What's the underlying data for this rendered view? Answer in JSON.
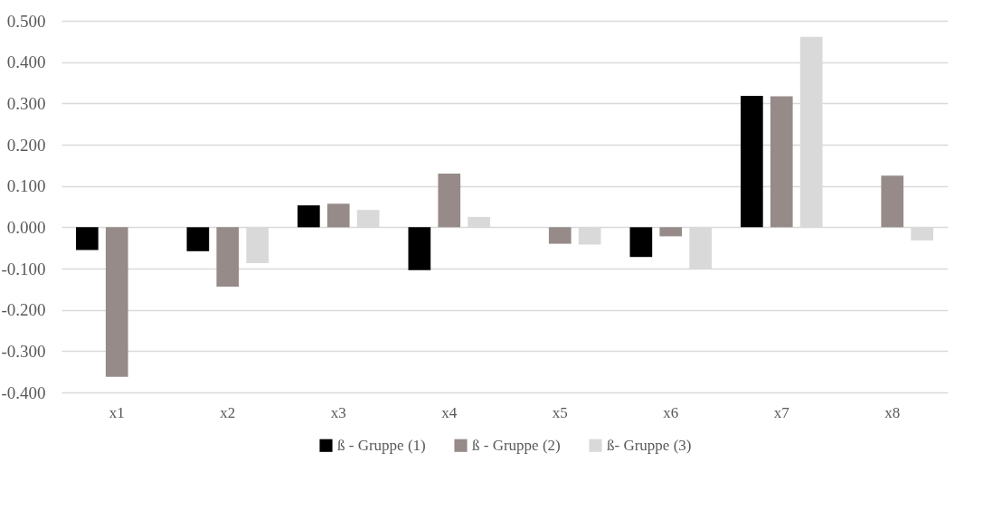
{
  "chart_data": {
    "type": "bar",
    "categories": [
      "x1",
      "x2",
      "x3",
      "x4",
      "x5",
      "x6",
      "x7",
      "x8"
    ],
    "series": [
      {
        "name": "ß - Gruppe (1)",
        "color": "#000000",
        "values": [
          -0.055,
          -0.058,
          0.053,
          -0.104,
          null,
          -0.072,
          0.318,
          null
        ]
      },
      {
        "name": "ß - Gruppe (2)",
        "color": "#968b89",
        "values": [
          -0.362,
          -0.144,
          0.057,
          0.13,
          -0.04,
          -0.022,
          0.317,
          0.125
        ]
      },
      {
        "name": "ß- Gruppe (3)",
        "color": "#d9d9d9",
        "values": [
          null,
          -0.087,
          0.042,
          0.025,
          -0.042,
          -0.1,
          0.461,
          -0.032
        ]
      }
    ],
    "ylim": [
      -0.4,
      0.5
    ],
    "yticks": [
      {
        "value": -0.4,
        "label": "-0.400"
      },
      {
        "value": -0.3,
        "label": "-0.300"
      },
      {
        "value": -0.2,
        "label": "-0.200"
      },
      {
        "value": -0.1,
        "label": "-0.100"
      },
      {
        "value": 0,
        "label": "0.000"
      },
      {
        "value": 0.1,
        "label": "0.100"
      },
      {
        "value": 0.2,
        "label": "0.200"
      },
      {
        "value": 0.3,
        "label": "0.300"
      },
      {
        "value": 0.4,
        "label": "0.400"
      },
      {
        "value": 0.5,
        "label": "0.500"
      }
    ],
    "grid": "y",
    "legend": "bottom"
  }
}
